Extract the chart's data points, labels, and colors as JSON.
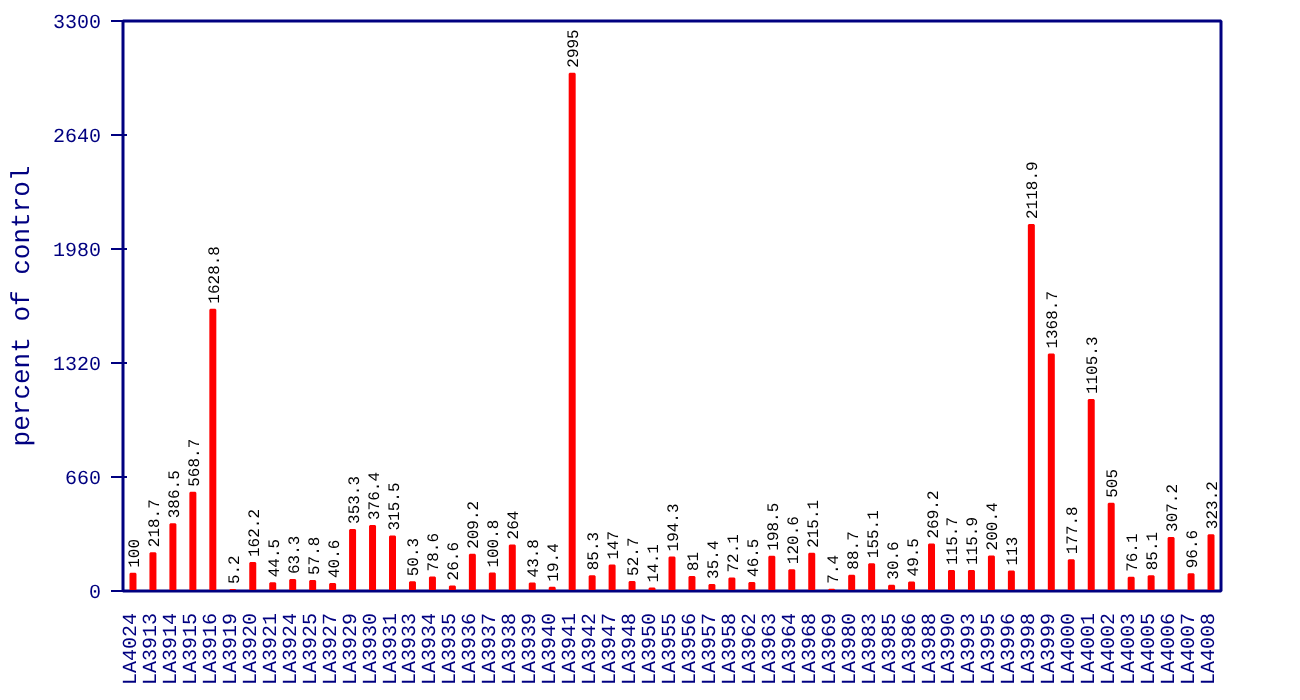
{
  "chart_data": {
    "type": "bar",
    "ylabel": "percent of control",
    "categories": [
      "LA4024",
      "LA3913",
      "LA3914",
      "LA3915",
      "LA3916",
      "LA3919",
      "LA3920",
      "LA3921",
      "LA3924",
      "LA3925",
      "LA3927",
      "LA3929",
      "LA3930",
      "LA3931",
      "LA3933",
      "LA3934",
      "LA3935",
      "LA3936",
      "LA3937",
      "LA3938",
      "LA3939",
      "LA3940",
      "LA3941",
      "LA3942",
      "LA3947",
      "LA3948",
      "LA3950",
      "LA3955",
      "LA3956",
      "LA3957",
      "LA3958",
      "LA3962",
      "LA3963",
      "LA3964",
      "LA3968",
      "LA3969",
      "LA3980",
      "LA3983",
      "LA3985",
      "LA3986",
      "LA3988",
      "LA3990",
      "LA3993",
      "LA3995",
      "LA3996",
      "LA3998",
      "LA3999",
      "LA4000",
      "LA4001",
      "LA4002",
      "LA4003",
      "LA4005",
      "LA4006",
      "LA4007",
      "LA4008"
    ],
    "values": [
      100,
      218.7,
      386.5,
      568.7,
      1628.8,
      5.2,
      162.2,
      44.5,
      63.3,
      57.8,
      40.6,
      353.3,
      376.4,
      315.5,
      50.3,
      78.6,
      26.6,
      209.2,
      100.8,
      264,
      43.8,
      19.4,
      2995,
      85.3,
      147,
      52.7,
      14.1,
      194.3,
      81,
      35.4,
      72.1,
      46.5,
      198.5,
      120.6,
      215.1,
      7.4,
      88.7,
      155.1,
      30.6,
      49.5,
      269.2,
      115.7,
      115.9,
      200.4,
      113,
      2118.9,
      1368.7,
      177.8,
      1105.3,
      505,
      76.1,
      85.1,
      307.2,
      96.6,
      323.2
    ],
    "color": "#ff0000",
    "ylim": [
      0,
      3300
    ],
    "yticks": [
      0,
      660,
      1320,
      1980,
      2640,
      3300
    ],
    "grid": false,
    "data_labels": true
  }
}
